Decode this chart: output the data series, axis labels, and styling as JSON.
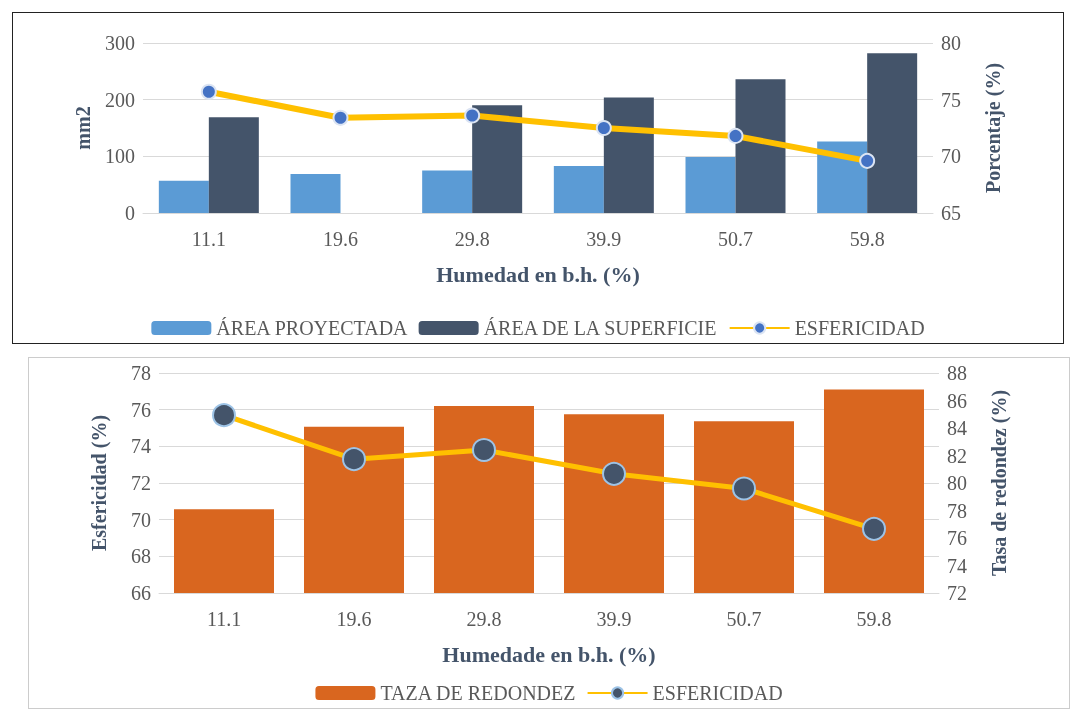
{
  "chart_data": [
    {
      "type": "bar",
      "xlabel": "Humedad en b.h. (%)",
      "ylabel": "mm2",
      "y2label": "Porcentaje (%)",
      "categories": [
        "11.1",
        "19.6",
        "29.8",
        "39.9",
        "50.7",
        "59.8"
      ],
      "series": [
        {
          "name": "ÁREA PROYECTADA",
          "color": "#5b9bd5",
          "values": [
            57,
            69,
            75,
            83,
            99,
            126
          ]
        },
        {
          "name": "ÁREA DE LA SUPERFICIE",
          "color": "#44546a",
          "values": [
            169,
            null,
            190,
            204,
            236,
            282
          ]
        },
        {
          "name": "ESFERICIDAD",
          "type": "line",
          "axis": "y2",
          "color": "#ffc000",
          "marker": "circle",
          "values": [
            75.7,
            73.4,
            73.6,
            72.5,
            71.8,
            69.6
          ]
        }
      ],
      "ylim": [
        0,
        300
      ],
      "yticks": [
        0,
        100,
        200,
        300
      ],
      "y2lim": [
        65,
        80
      ],
      "y2ticks": [
        65,
        70,
        75,
        80
      ],
      "grid": "y",
      "legend": "bottom"
    },
    {
      "type": "bar",
      "xlabel": "Humedade en b.h. (%)",
      "ylabel": "Esfericidad (%)",
      "y2label": "Tasa de redondez (%)",
      "categories": [
        "11.1",
        "19.6",
        "29.8",
        "39.9",
        "50.7",
        "59.8"
      ],
      "series": [
        {
          "name": "TAZA DE REDONDEZ",
          "color": "#d9661f",
          "axis": "y2",
          "values": [
            78.1,
            84.1,
            85.6,
            85.0,
            84.5,
            86.8
          ]
        },
        {
          "name": "ESFERICIDAD",
          "type": "line",
          "color": "#ffc000",
          "marker": "circle",
          "values": [
            75.7,
            73.3,
            73.8,
            72.5,
            71.7,
            69.5
          ]
        }
      ],
      "ylim": [
        66,
        78
      ],
      "yticks": [
        66,
        68,
        70,
        72,
        74,
        76,
        78
      ],
      "y2lim": [
        72,
        88
      ],
      "y2ticks": [
        72,
        74,
        76,
        78,
        80,
        82,
        84,
        86,
        88
      ],
      "grid": "y",
      "legend": "bottom"
    }
  ]
}
